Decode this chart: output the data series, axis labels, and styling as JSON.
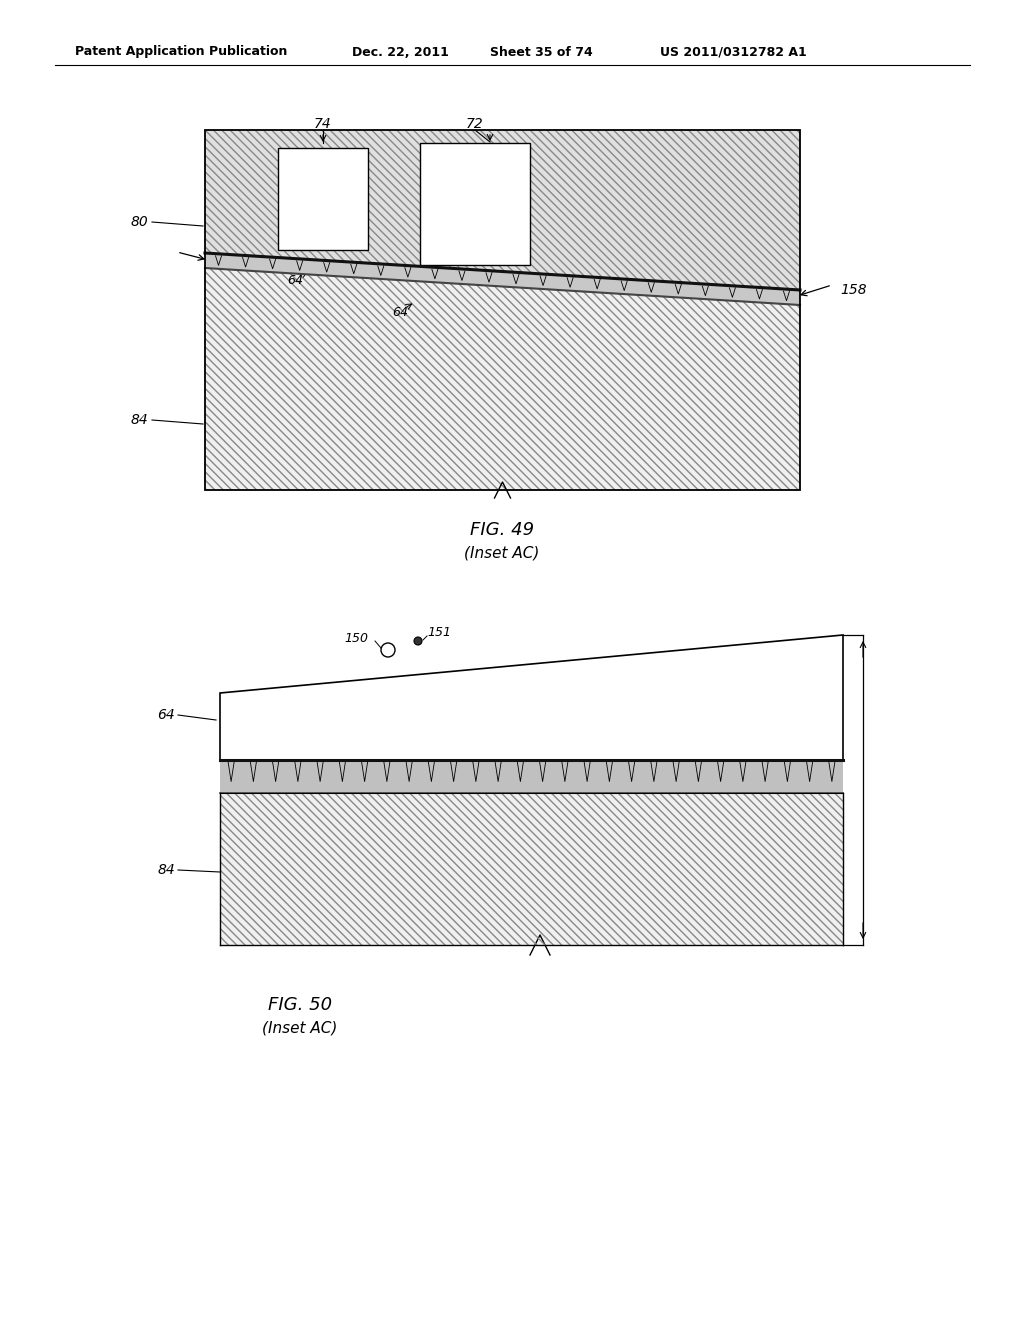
{
  "bg_color": "#ffffff",
  "header_text": "Patent Application Publication",
  "header_date": "Dec. 22, 2011",
  "header_sheet": "Sheet 35 of 74",
  "header_patent": "US 2011/0312782 A1",
  "fig49_title": "FIG. 49",
  "fig49_subtitle": "(Inset AC)",
  "fig50_title": "FIG. 50",
  "fig50_subtitle": "(Inset AC)",
  "line_color": "#000000",
  "hatch_light": "#e8e8e8",
  "hatch_dark": "#d0d0d0",
  "band_color": "#aaaaaa",
  "band_dark": "#555555"
}
